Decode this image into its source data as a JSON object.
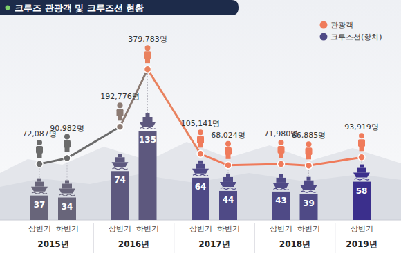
{
  "chart_data": {
    "type": "bar",
    "title": "크루즈 관광객 및 크루즈선 현황",
    "categories": [
      "상반기",
      "하반기",
      "상반기",
      "하반기",
      "상반기",
      "하반기",
      "상반기",
      "하반기",
      "상반기"
    ],
    "group_labels": [
      "2015년",
      null,
      "2016년",
      null,
      "2017년",
      null,
      "2018년",
      null,
      "2019년"
    ],
    "series": [
      {
        "name": "관광객",
        "type": "line",
        "axis": "y2",
        "marker": "circle",
        "color": "#ef7b5b",
        "colors": [
          "#6b6b6b",
          "#6b6b6b",
          "#8c7b73",
          "#e9825f",
          "#ef7b5b",
          "#ef7b5b",
          "#ef7b5b",
          "#ef7b5b",
          "#ef7b5b"
        ],
        "values": [
          72087,
          90982,
          192776,
          379783,
          105141,
          68024,
          71980,
          66885,
          93919
        ],
        "value_labels": [
          "72,087명",
          "90,982명",
          "192,776명",
          "379,783명",
          "105,141명",
          "68,024명",
          "71,980명",
          "66,885명",
          "93,919명"
        ]
      },
      {
        "name": "크루즈선(항차)",
        "type": "bar",
        "axis": "y",
        "color": "#4f4a86",
        "colors": [
          "#68657a",
          "#68657a",
          "#5d587e",
          "#5d587e",
          "#4f4a86",
          "#4f4a86",
          "#4f4a86",
          "#4f4a86",
          "#3b2f8c"
        ],
        "values": [
          37,
          34,
          74,
          135,
          64,
          44,
          43,
          39,
          58
        ]
      }
    ],
    "ylim": [
      0,
      270
    ],
    "y2lim": [
      -110000,
      470000
    ],
    "data_labels": true,
    "tick_labels": false,
    "grid": false,
    "legend": "upper right"
  }
}
